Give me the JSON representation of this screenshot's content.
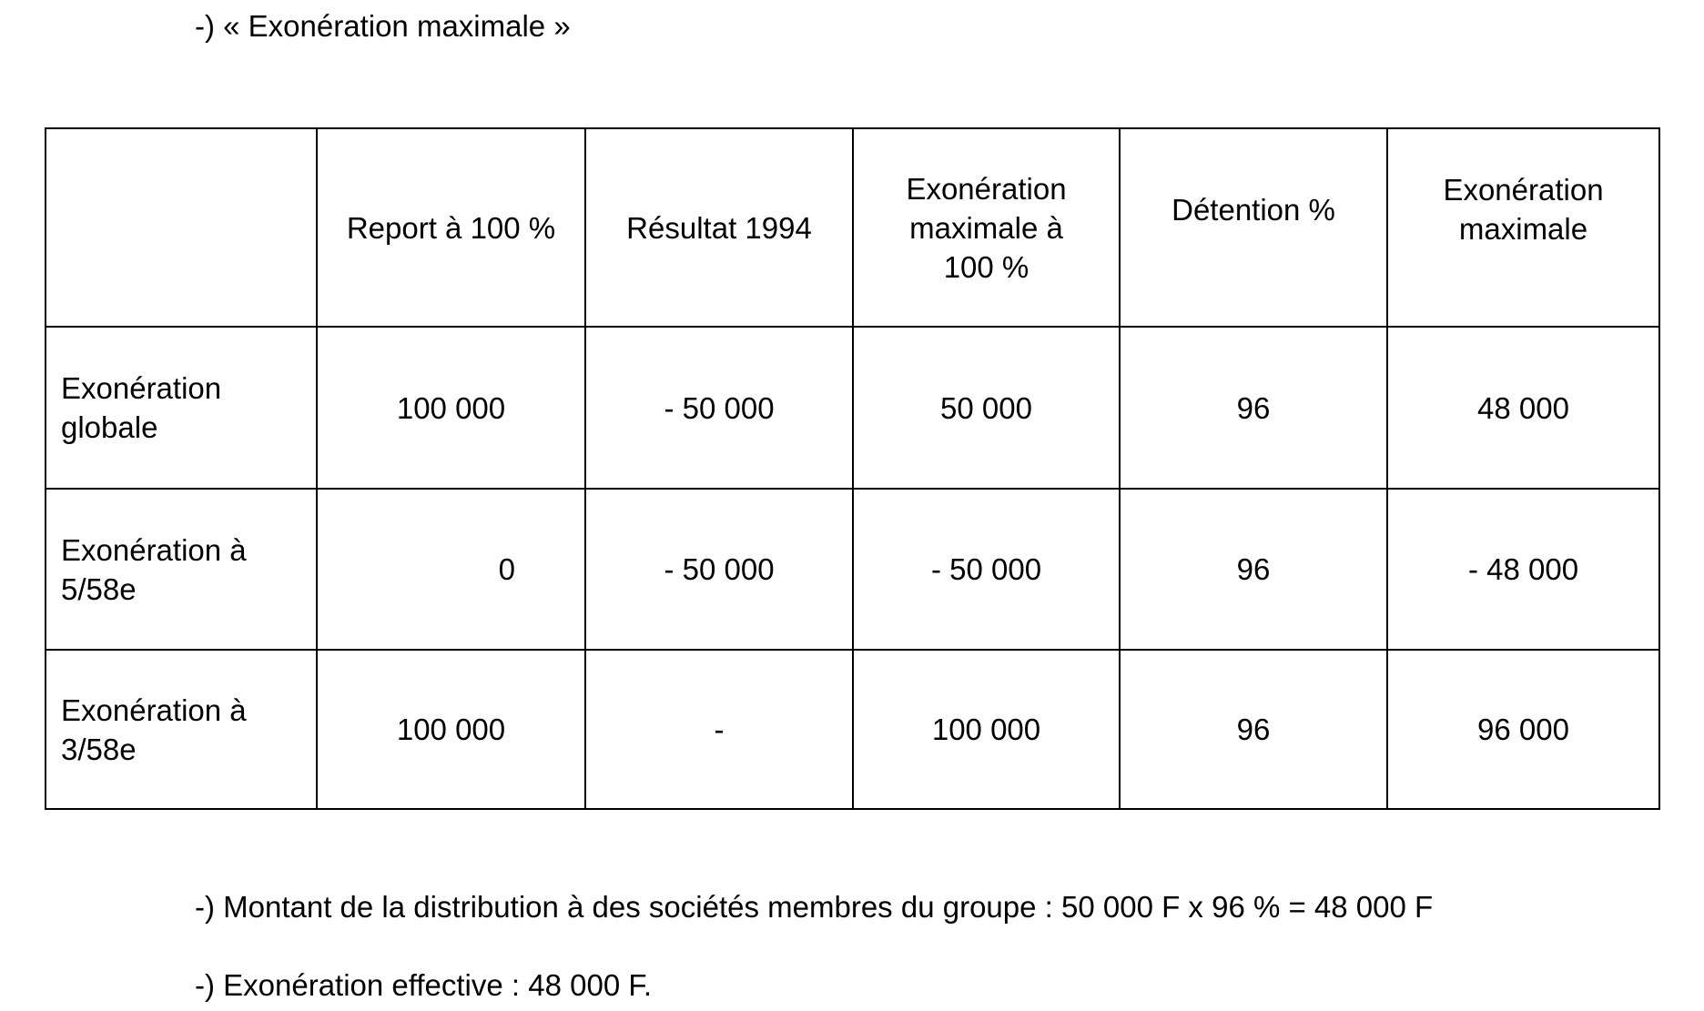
{
  "heading": "-) « Exonération maximale »",
  "table": {
    "headers": [
      "",
      "Report à 100 %",
      "Résultat 1994",
      "Exonération maximale à 100 %",
      "Détention %",
      "Exonération maximale"
    ],
    "rows": [
      {
        "label": "Exonération globale",
        "cells": [
          "100 000",
          "- 50 000",
          "50 000",
          "96",
          "48 000"
        ]
      },
      {
        "label": "Exonération à 5/58e",
        "cells": [
          "0",
          "- 50 000",
          "- 50 000",
          "96",
          "- 48 000"
        ]
      },
      {
        "label": "Exonération à 3/58e",
        "cells": [
          "100 000",
          "-",
          "100 000",
          "96",
          "96 000"
        ]
      }
    ]
  },
  "notes": [
    "-) Montant de la distribution à des sociétés membres du groupe : 50 000 F x 96 % = 48 000 F",
    "-) Exonération effective : 48 000 F."
  ]
}
